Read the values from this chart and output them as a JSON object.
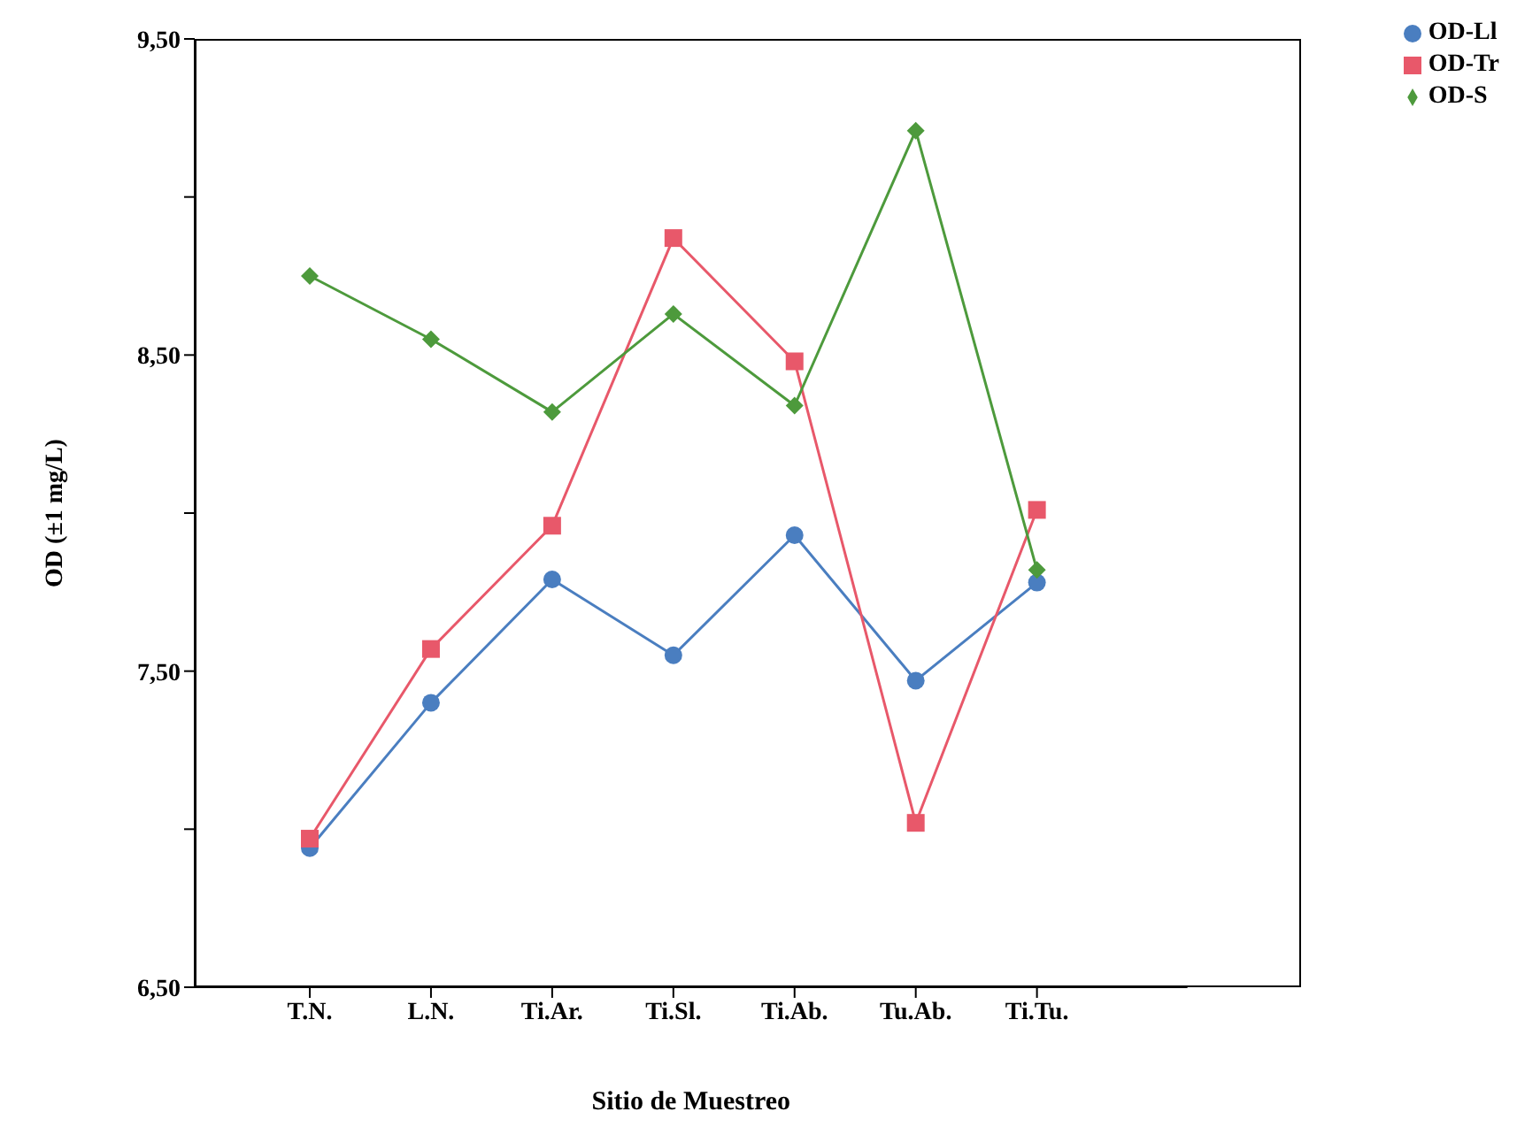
{
  "chart_data": {
    "type": "line",
    "xlabel": "Sitio de Muestreo",
    "ylabel": "OD (±1 mg/L)",
    "categories": [
      "T.N.",
      "L.N.",
      "Ti.Ar.",
      "Ti.Sl.",
      "Ti.Ab.",
      "Tu.Ab.",
      "Ti.Tu."
    ],
    "ylim": [
      6.5,
      9.5
    ],
    "yticks": [
      {
        "value": 6.5,
        "label": "6,50"
      },
      {
        "value": 7,
        "label": null
      },
      {
        "value": 7.5,
        "label": "7,50"
      },
      {
        "value": 8,
        "label": null
      },
      {
        "value": 8.5,
        "label": "8,50"
      },
      {
        "value": 9,
        "label": null
      },
      {
        "value": 9.5,
        "label": "9,50"
      }
    ],
    "legend": "top right",
    "series": [
      {
        "name": "OD-Ll",
        "color": "#4a7ec0",
        "marker": "circle",
        "values": [
          6.94,
          7.4,
          7.79,
          7.55,
          7.93,
          7.47,
          7.78
        ]
      },
      {
        "name": "OD-Tr",
        "color": "#e8586a",
        "marker": "square",
        "values": [
          6.97,
          7.57,
          7.96,
          8.87,
          8.48,
          7.02,
          8.01
        ]
      },
      {
        "name": "OD-S",
        "color": "#4d9a3c",
        "marker": "diamond",
        "values": [
          8.75,
          8.55,
          8.32,
          8.63,
          8.34,
          9.21,
          7.82
        ]
      }
    ]
  }
}
